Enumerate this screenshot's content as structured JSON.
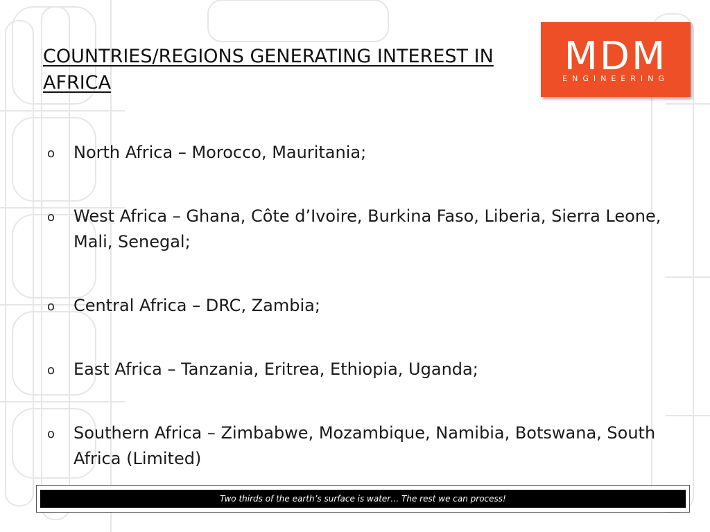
{
  "slide": {
    "title": "COUNTRIES/REGIONS GENERATING INTEREST IN AFRICA"
  },
  "logo": {
    "mark": "MDM",
    "sub": "ENGINEERING",
    "color": "#ee4f26"
  },
  "bullets": [
    {
      "marker": "o",
      "text": "North Africa – Morocco, Mauritania;"
    },
    {
      "marker": "o",
      "text": "West Africa – Ghana, Côte d’Ivoire, Burkina Faso, Liberia, Sierra Leone, Mali, Senegal;"
    },
    {
      "marker": "o",
      "text": "Central Africa – DRC, Zambia;"
    },
    {
      "marker": "o",
      "text": "East Africa – Tanzania, Eritrea, Ethiopia, Uganda;"
    },
    {
      "marker": "o",
      "text": "Southern Africa – Zimbabwe, Mozambique, Namibia, Botswana, South Africa (Limited)"
    }
  ],
  "footer": {
    "tagline": "Two thirds of the earth’s surface is water… The rest we can process!"
  }
}
